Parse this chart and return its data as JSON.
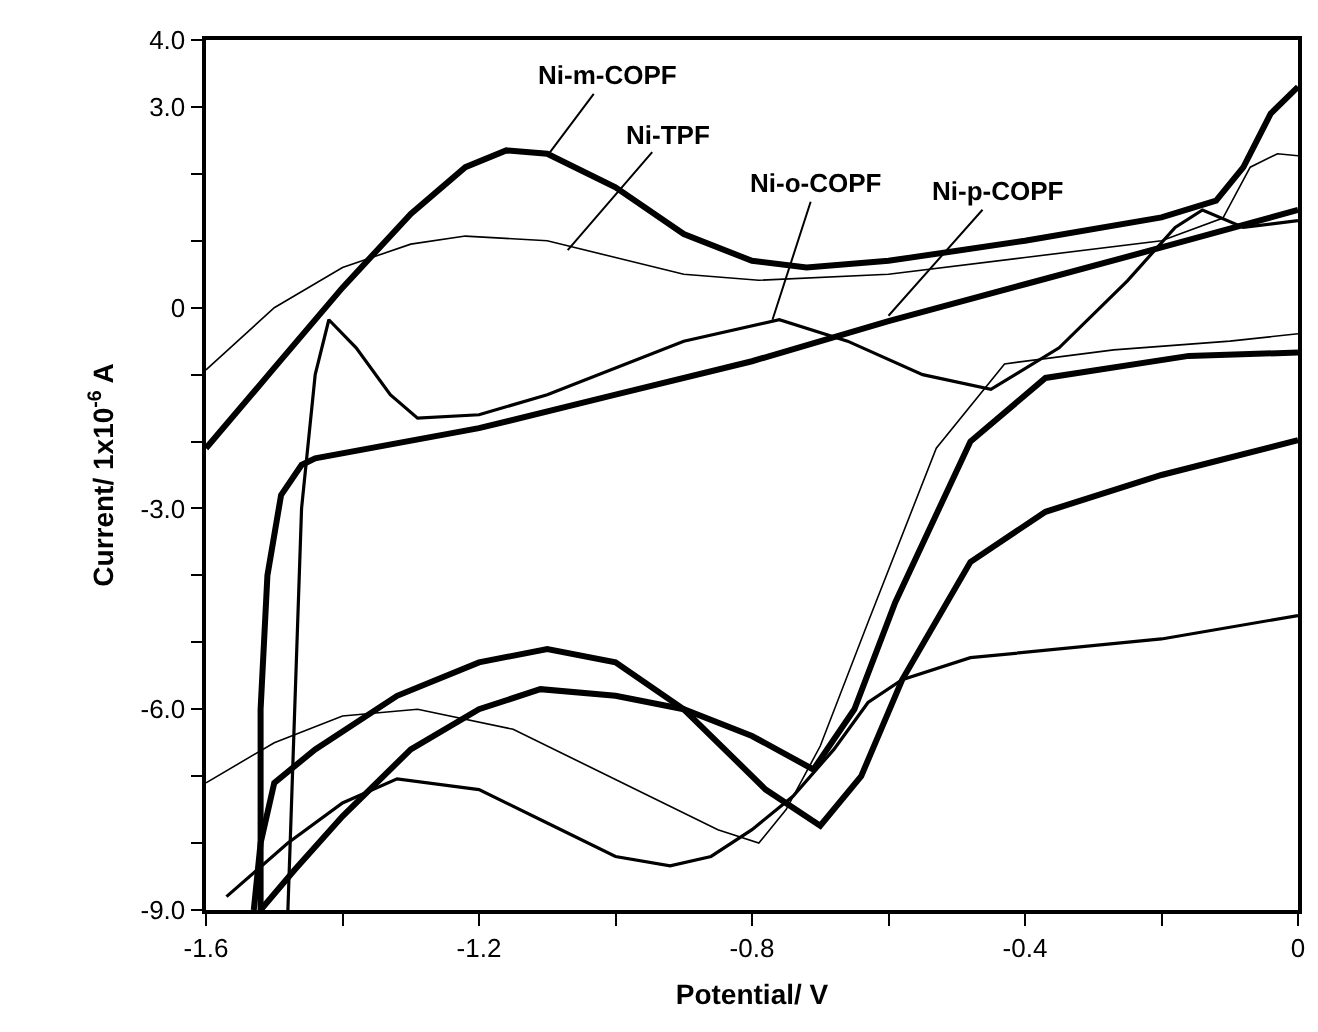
{
  "chart_data": {
    "type": "line",
    "xlabel": "Potential/ V",
    "ylabel": "Current/ 1x10$^{-6}$ A",
    "xlim": [
      -1.6,
      0
    ],
    "ylim": [
      -9,
      4
    ],
    "xticks": [
      -1.6,
      {
        "value": -1.4,
        "label": null
      },
      -1.2,
      {
        "value": -1.0,
        "label": null
      },
      -0.8,
      {
        "value": -0.6,
        "label": null
      },
      -0.4,
      {
        "value": -0.2,
        "label": null
      },
      0
    ],
    "yticks": [
      {
        "value": -9,
        "label": "-9.0"
      },
      {
        "value": -8,
        "label": null
      },
      {
        "value": -7,
        "label": null
      },
      {
        "value": -6,
        "label": "-6.0"
      },
      {
        "value": -5,
        "label": null
      },
      {
        "value": -4,
        "label": null
      },
      {
        "value": -3,
        "label": "-3.0"
      },
      {
        "value": -2,
        "label": null
      },
      {
        "value": -1,
        "label": null
      },
      0,
      {
        "value": 1,
        "label": null
      },
      {
        "value": 2,
        "label": null
      },
      {
        "value": 3,
        "label": "3.0"
      },
      {
        "value": 4,
        "label": "4.0"
      }
    ],
    "grid": false,
    "marker": "none",
    "line_style": "solid",
    "series": [
      {
        "color": "#000000",
        "x": [
          -1.6,
          -1.5,
          -1.4,
          -1.3,
          -1.22,
          -1.16,
          -1.1,
          -1.0,
          -0.9,
          -0.8,
          -0.72,
          -0.6,
          -0.4,
          -0.2,
          -0.12,
          -0.08,
          -0.04,
          0,
          null,
          0,
          -0.16,
          -0.37,
          -0.48,
          -0.59,
          -0.65,
          -0.71,
          -0.8,
          -0.9,
          -1.0,
          -1.11,
          -1.2,
          -1.3,
          -1.4,
          -1.47,
          -1.52
        ],
        "values": [
          -2.1,
          -0.9,
          0.3,
          1.4,
          2.1,
          2.35,
          2.3,
          1.8,
          1.1,
          0.7,
          0.6,
          0.7,
          1.0,
          1.35,
          1.6,
          2.1,
          2.9,
          3.3,
          null,
          -0.67,
          -0.72,
          -1.05,
          -2.0,
          -4.4,
          -6.0,
          -6.9,
          -6.4,
          -6.0,
          -5.8,
          -5.7,
          -6.0,
          -6.6,
          -7.6,
          -8.4,
          -9.0
        ]
      },
      {
        "color": "#000000",
        "x": [
          -1.6,
          -1.5,
          -1.4,
          -1.3,
          -1.22,
          -1.1,
          -1.0,
          -0.9,
          -0.79,
          -0.6,
          -0.4,
          -0.2,
          -0.11,
          -0.07,
          -0.03,
          0,
          null,
          0,
          -0.1,
          -0.27,
          -0.43,
          -0.53,
          -0.63,
          -0.7,
          -0.75,
          -0.79,
          -0.85,
          -0.95,
          -1.05,
          -1.15,
          -1.29,
          -1.4,
          -1.5,
          -1.6
        ],
        "values": [
          -0.93,
          0.0,
          0.6,
          0.95,
          1.07,
          1.0,
          0.75,
          0.5,
          0.41,
          0.5,
          0.75,
          1.0,
          1.34,
          2.1,
          2.3,
          2.27,
          null,
          -0.39,
          -0.5,
          -0.63,
          -0.84,
          -2.1,
          -4.7,
          -6.55,
          -7.5,
          -8.0,
          -7.8,
          -7.3,
          -6.8,
          -6.3,
          -6.0,
          -6.1,
          -6.5,
          -7.1
        ]
      },
      {
        "color": "#000000",
        "x": [
          -1.48,
          -1.47,
          -1.46,
          -1.44,
          -1.42,
          -1.38,
          -1.33,
          -1.29,
          -1.2,
          -1.1,
          -1.0,
          -0.9,
          -0.76,
          -0.66,
          -0.55,
          -0.45,
          -0.35,
          -0.25,
          -0.18,
          -0.14,
          -0.08,
          0,
          null,
          0,
          -0.2,
          -0.48,
          -0.58,
          -0.63,
          -0.68,
          -0.74,
          -0.8,
          -0.86,
          -0.92,
          -1.0,
          -1.1,
          -1.2,
          -1.32,
          -1.4,
          -1.48,
          -1.57
        ],
        "values": [
          -9.0,
          -6.0,
          -3.0,
          -1.0,
          -0.18,
          -0.6,
          -1.3,
          -1.65,
          -1.6,
          -1.3,
          -0.9,
          -0.5,
          -0.18,
          -0.5,
          -1.0,
          -1.22,
          -0.6,
          0.4,
          1.2,
          1.46,
          1.2,
          1.3,
          null,
          -4.6,
          -4.95,
          -5.23,
          -5.56,
          -5.9,
          -6.6,
          -7.3,
          -7.8,
          -8.2,
          -8.34,
          -8.2,
          -7.7,
          -7.2,
          -7.04,
          -7.4,
          -8.0,
          -8.8
        ]
      },
      {
        "color": "#000000",
        "x": [
          -1.52,
          -1.52,
          -1.51,
          -1.49,
          -1.46,
          -1.44,
          -1.2,
          -1.0,
          -0.8,
          -0.6,
          -0.4,
          -0.2,
          0,
          null,
          0,
          -0.2,
          -0.37,
          -0.48,
          -0.58,
          -0.64,
          -0.7,
          -0.78,
          -0.9,
          -1.0,
          -1.1,
          -1.2,
          -1.32,
          -1.44,
          -1.5,
          -1.52,
          -1.53
        ],
        "values": [
          -9.0,
          -6.0,
          -4.0,
          -2.8,
          -2.35,
          -2.25,
          -1.8,
          -1.3,
          -0.8,
          -0.2,
          0.35,
          0.9,
          1.46,
          null,
          -1.98,
          -2.5,
          -3.05,
          -3.8,
          -5.56,
          -7.0,
          -7.74,
          -7.2,
          -6.0,
          -5.3,
          -5.1,
          -5.3,
          -5.8,
          -6.6,
          -7.1,
          -8.0,
          -9.0
        ]
      }
    ],
    "annotations": [
      {
        "text": "Ni-m-COPF",
        "x": -1.1,
        "y": 2.27
      },
      {
        "text": "Ni-TPF",
        "x": -1.07,
        "y": 0.86
      },
      {
        "text": "Ni-o-COPF",
        "x": -0.77,
        "y": -0.18
      },
      {
        "text": "Ni-p-COPF",
        "x": -0.6,
        "y": -0.12
      }
    ]
  }
}
